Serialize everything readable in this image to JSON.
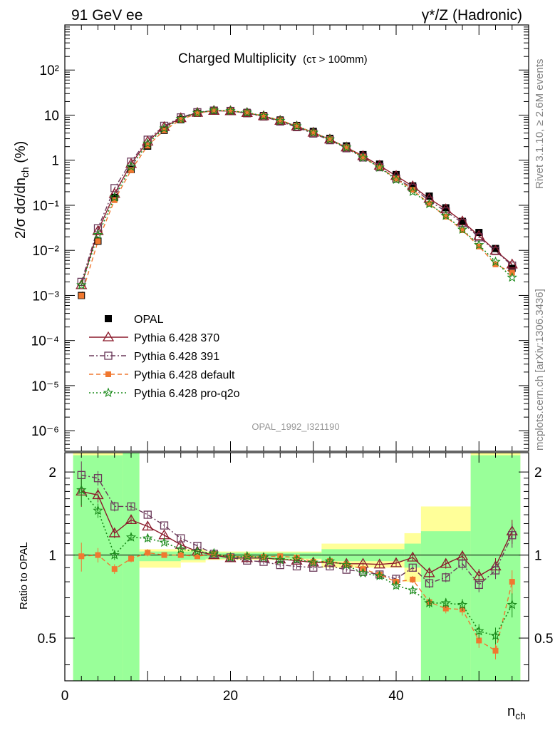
{
  "header": {
    "left": "91 GeV ee",
    "right": "γ*/Z (Hadronic)"
  },
  "title_main": "Charged Multiplicity",
  "title_sub": "(cτ > 100mm)",
  "side_top": "Rivet 3.1.10, ≥ 2.6M events",
  "side_bottom": "mcplots.cern.ch [arXiv:1306.3436]",
  "watermark": "OPAL_1992_I321190",
  "axis": {
    "ylabel_main": "2/σ dσ/dn",
    "ylabel_main_sub": "ch",
    "ylabel_main_unit": " (%)",
    "ylabel_ratio": "Ratio to OPAL",
    "xlabel": "n",
    "xlabel_sub": "ch",
    "y_ticks_main": [
      "10⁻⁶",
      "10⁻⁵",
      "10⁻⁴",
      "10⁻³",
      "10⁻²",
      "10⁻¹",
      "1",
      "10",
      "10²"
    ],
    "y_ticks_ratio": [
      "0.5",
      "1",
      "2"
    ],
    "x_ticks": [
      "0",
      "20",
      "40"
    ]
  },
  "legend": [
    {
      "key": "opal",
      "label": "OPAL"
    },
    {
      "key": "p370",
      "label": "Pythia 6.428 370"
    },
    {
      "key": "p391",
      "label": "Pythia 6.428 391"
    },
    {
      "key": "pdef",
      "label": "Pythia 6.428 default"
    },
    {
      "key": "pq2o",
      "label": "Pythia 6.428 pro-q2o"
    }
  ],
  "colors": {
    "opal": "#000000",
    "p370": "#8b1a2b",
    "p391": "#6b3a5a",
    "pdef": "#f07830",
    "pq2o": "#1a8a1a",
    "band_inner": "#99ff99",
    "band_outer": "#ffff99"
  },
  "chart_data": {
    "type": "line",
    "x": [
      2,
      4,
      6,
      8,
      10,
      12,
      14,
      16,
      18,
      20,
      22,
      24,
      26,
      28,
      30,
      32,
      34,
      36,
      38,
      40,
      42,
      44,
      46,
      48,
      50,
      52,
      54
    ],
    "xlim": [
      0,
      56
    ],
    "ylim_main": [
      3.5e-07,
      1000
    ],
    "log_y": true,
    "ylim_ratio": [
      0.35,
      2.35
    ],
    "ratio_log_y": true,
    "series": [
      {
        "key": "opal",
        "name": "OPAL",
        "values": [
          0.001,
          0.016,
          0.15,
          0.62,
          2.05,
          4.6,
          7.9,
          11.0,
          12.5,
          12.6,
          11.5,
          9.8,
          7.8,
          5.9,
          4.35,
          3.05,
          2.08,
          1.33,
          0.82,
          0.48,
          0.27,
          0.16,
          0.088,
          0.044,
          0.025,
          0.011,
          0.004
        ]
      },
      {
        "key": "p370",
        "name": "Pythia 6.428 370",
        "values": [
          0.0017,
          0.027,
          0.18,
          0.83,
          2.6,
          5.45,
          8.6,
          11.3,
          12.5,
          12.3,
          11.2,
          9.5,
          7.5,
          5.6,
          4.1,
          2.9,
          1.93,
          1.24,
          0.76,
          0.45,
          0.265,
          0.14,
          0.082,
          0.044,
          0.021,
          0.0099,
          0.0049
        ]
      },
      {
        "key": "p391",
        "name": "Pythia 6.428 391",
        "values": [
          0.002,
          0.031,
          0.24,
          0.93,
          2.85,
          5.8,
          8.9,
          11.6,
          12.6,
          12.4,
          11.0,
          9.3,
          7.2,
          5.4,
          3.9,
          2.78,
          1.84,
          1.15,
          0.7,
          0.39,
          0.245,
          0.126,
          0.073,
          0.041,
          0.0195,
          0.0097,
          0.0046
        ]
      },
      {
        "key": "pdef",
        "name": "Pythia 6.428 default",
        "values": [
          0.00099,
          0.016,
          0.13,
          0.6,
          2.1,
          4.6,
          7.9,
          10.9,
          12.6,
          12.4,
          11.4,
          9.6,
          7.7,
          5.8,
          4.1,
          2.9,
          1.93,
          1.18,
          0.69,
          0.39,
          0.22,
          0.108,
          0.056,
          0.028,
          0.0122,
          0.0049,
          0.0032
        ]
      },
      {
        "key": "pq2o",
        "name": "Pythia 6.428 pro-q2o",
        "values": [
          0.0017,
          0.022,
          0.15,
          0.72,
          2.35,
          5.1,
          8.3,
          11.3,
          12.7,
          12.4,
          11.4,
          9.6,
          7.5,
          5.7,
          4.1,
          2.9,
          1.92,
          1.14,
          0.69,
          0.37,
          0.2,
          0.107,
          0.059,
          0.029,
          0.0132,
          0.0056,
          0.0025
        ]
      }
    ],
    "ratio": [
      {
        "key": "p370",
        "values": [
          1.7,
          1.65,
          1.2,
          1.34,
          1.27,
          1.18,
          1.09,
          1.03,
          1.0,
          0.975,
          0.975,
          0.975,
          0.965,
          0.955,
          0.94,
          0.94,
          0.93,
          0.93,
          0.925,
          0.935,
          0.98,
          0.86,
          0.93,
          0.99,
          0.84,
          0.91,
          1.22
        ]
      },
      {
        "key": "p391",
        "values": [
          1.95,
          1.9,
          1.5,
          1.5,
          1.4,
          1.28,
          1.15,
          1.08,
          1.01,
          0.98,
          0.955,
          0.945,
          0.92,
          0.91,
          0.9,
          0.91,
          0.885,
          0.87,
          0.85,
          0.82,
          0.9,
          0.79,
          0.83,
          0.93,
          0.78,
          0.88,
          1.18
        ]
      },
      {
        "key": "pdef",
        "values": [
          0.99,
          1.0,
          0.89,
          0.97,
          1.02,
          1.0,
          1.0,
          0.99,
          1.01,
          0.985,
          0.99,
          0.985,
          0.99,
          0.98,
          0.945,
          0.95,
          0.925,
          0.89,
          0.85,
          0.8,
          0.815,
          0.675,
          0.64,
          0.635,
          0.49,
          0.45,
          0.8
        ]
      },
      {
        "key": "pq2o",
        "values": [
          1.72,
          1.45,
          1.0,
          1.16,
          1.15,
          1.11,
          1.05,
          1.03,
          1.015,
          0.98,
          0.99,
          0.98,
          0.96,
          0.965,
          0.94,
          0.95,
          0.92,
          0.86,
          0.84,
          0.775,
          0.745,
          0.67,
          0.67,
          0.66,
          0.53,
          0.51,
          0.66
        ]
      }
    ],
    "opal_ratio_errors": [
      0.12,
      0.06,
      0.04,
      0.03,
      0.03,
      0.02,
      0.02,
      0.02,
      0.02,
      0.02,
      0.02,
      0.02,
      0.02,
      0.02,
      0.02,
      0.02,
      0.02,
      0.02,
      0.03,
      0.03,
      0.03,
      0.04,
      0.04,
      0.05,
      0.06,
      0.07,
      0.1
    ],
    "ratio_band_inner": [
      [
        1,
        2.3,
        0.35
      ],
      [
        7,
        2.35,
        0.35
      ],
      [
        9,
        1.03,
        0.95
      ],
      [
        14,
        1.03,
        0.96
      ],
      [
        17,
        1.02,
        0.97
      ],
      [
        31,
        1.05,
        0.95
      ],
      [
        41,
        1.1,
        0.9
      ],
      [
        43,
        1.22,
        0.35
      ],
      [
        49,
        2.3,
        0.35
      ]
    ],
    "ratio_band_outer": [
      [
        1,
        2.35,
        0.35
      ],
      [
        7,
        2.35,
        0.35
      ],
      [
        9,
        1.05,
        0.9
      ],
      [
        14,
        1.05,
        0.94
      ],
      [
        17,
        1.03,
        0.96
      ],
      [
        31,
        1.1,
        0.9
      ],
      [
        41,
        1.2,
        0.8
      ],
      [
        43,
        1.5,
        0.35
      ],
      [
        49,
        2.35,
        0.35
      ]
    ]
  }
}
